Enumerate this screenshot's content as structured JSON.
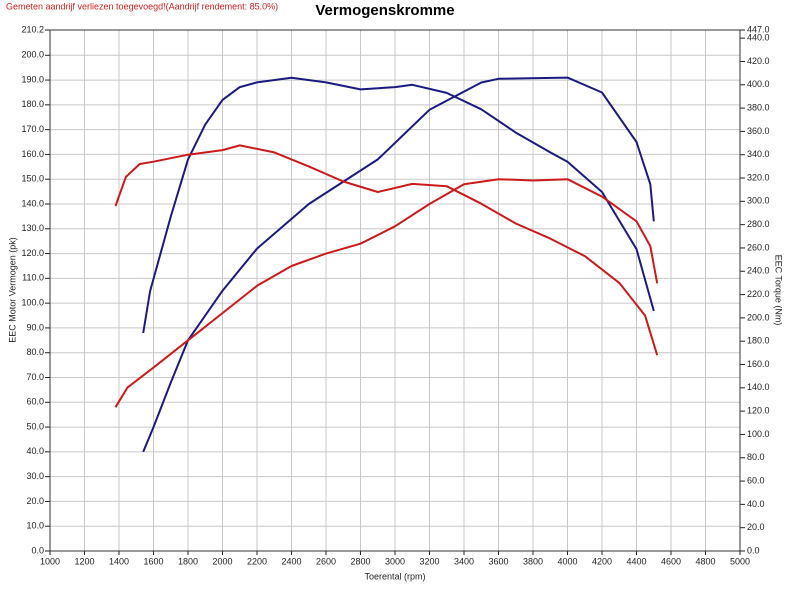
{
  "chart_data": {
    "type": "line",
    "title": "Vermogenskromme",
    "subtitle": "Gemeten aandrijf verliezen toegevoegd!(Aandrijf rendement: 85.0%)",
    "xlabel": "Toerental (rpm)",
    "ylabel": "EEC Motor Vermogen (pk)",
    "y2label": "EEC Torque (Nm)",
    "xlim": [
      1000,
      5000
    ],
    "xticks": [
      1000,
      1200,
      1400,
      1600,
      1800,
      2000,
      2200,
      2400,
      2600,
      2800,
      3000,
      3200,
      3400,
      3600,
      3800,
      4000,
      4200,
      4400,
      4600,
      4800,
      5000
    ],
    "ylim": [
      0,
      210.2
    ],
    "yticks": [
      {
        "value": 0,
        "label": "0.0"
      },
      {
        "value": 10,
        "label": "10.0"
      },
      {
        "value": 20,
        "label": "20.0"
      },
      {
        "value": 30,
        "label": "30.0"
      },
      {
        "value": 40,
        "label": "40.0"
      },
      {
        "value": 50,
        "label": "50.0"
      },
      {
        "value": 60,
        "label": "60.0"
      },
      {
        "value": 70,
        "label": "70.0"
      },
      {
        "value": 80,
        "label": "80.0"
      },
      {
        "value": 90,
        "label": "90.0"
      },
      {
        "value": 100,
        "label": "100.0"
      },
      {
        "value": 110,
        "label": "110.0"
      },
      {
        "value": 120,
        "label": "120.0"
      },
      {
        "value": 130,
        "label": "130.0"
      },
      {
        "value": 140,
        "label": "140.0"
      },
      {
        "value": 150,
        "label": "150.0"
      },
      {
        "value": 160,
        "label": "160.0"
      },
      {
        "value": 170,
        "label": "170.0"
      },
      {
        "value": 180,
        "label": "180.0"
      },
      {
        "value": 190,
        "label": "190.0"
      },
      {
        "value": 200,
        "label": "200.0"
      },
      {
        "value": 210.2,
        "label": "210.2"
      }
    ],
    "y2lim": [
      0,
      447
    ],
    "y2ticks": [
      {
        "value": 0,
        "label": "0.0"
      },
      {
        "value": 20,
        "label": "20.0"
      },
      {
        "value": 40,
        "label": "40.0"
      },
      {
        "value": 60,
        "label": "60.0"
      },
      {
        "value": 80,
        "label": "80.0"
      },
      {
        "value": 100,
        "label": "100.0"
      },
      {
        "value": 120,
        "label": "120.0"
      },
      {
        "value": 140,
        "label": "140.0"
      },
      {
        "value": 160,
        "label": "160.0"
      },
      {
        "value": 180,
        "label": "180.0"
      },
      {
        "value": 200,
        "label": "200.0"
      },
      {
        "value": 220,
        "label": "220.0"
      },
      {
        "value": 240,
        "label": "240.0"
      },
      {
        "value": 260,
        "label": "260.0"
      },
      {
        "value": 280,
        "label": "280.0"
      },
      {
        "value": 300,
        "label": "300.0"
      },
      {
        "value": 320,
        "label": "320.0"
      },
      {
        "value": 340,
        "label": "340.0"
      },
      {
        "value": 360,
        "label": "360.0"
      },
      {
        "value": 380,
        "label": "380.0"
      },
      {
        "value": 400,
        "label": "400.0"
      },
      {
        "value": 420,
        "label": "420.0"
      },
      {
        "value": 440,
        "label": "440.0"
      },
      {
        "value": 447,
        "label": "447.0"
      }
    ],
    "grid": true,
    "series": [
      {
        "color": "#1a1a80",
        "axis": "y",
        "x": [
          1540,
          1600,
          1700,
          1800,
          2000,
          2200,
          2500,
          2900,
          3200,
          3500,
          3600,
          4000,
          4200,
          4400,
          4480,
          4500
        ],
        "values": [
          40,
          50,
          68,
          85,
          105,
          122,
          140,
          158,
          178,
          189,
          190.5,
          191,
          185,
          165,
          148,
          133
        ]
      },
      {
        "color": "#1a1a80",
        "axis": "y2",
        "x": [
          1540,
          1580,
          1700,
          1800,
          1900,
          2000,
          2100,
          2200,
          2400,
          2600,
          2800,
          3000,
          3100,
          3300,
          3500,
          3700,
          3900,
          4000,
          4200,
          4400,
          4500
        ],
        "values": [
          187,
          223,
          287,
          336,
          366,
          387,
          398,
          402,
          406,
          402,
          396,
          398,
          400,
          393,
          379,
          359,
          342,
          334,
          308,
          259,
          206
        ]
      },
      {
        "color": "#cc1a1a",
        "axis": "y",
        "x": [
          1380,
          1450,
          1600,
          1800,
          2000,
          2200,
          2400,
          2600,
          2800,
          3000,
          3200,
          3400,
          3600,
          3800,
          4000,
          4200,
          4400,
          4480,
          4520
        ],
        "values": [
          58,
          66,
          74,
          85,
          96,
          107,
          115,
          120,
          124,
          131,
          140,
          148,
          150,
          149.5,
          150,
          143,
          133,
          123,
          108
        ]
      },
      {
        "color": "#cc1a1a",
        "axis": "y2",
        "x": [
          1380,
          1440,
          1520,
          1600,
          1800,
          2000,
          2100,
          2300,
          2500,
          2700,
          2900,
          3100,
          3300,
          3500,
          3700,
          3900,
          4100,
          4300,
          4450,
          4520
        ],
        "values": [
          296,
          321,
          332,
          334,
          340,
          344,
          348,
          342,
          330,
          317,
          308,
          315,
          313,
          298,
          281,
          268,
          253,
          230,
          202,
          168
        ]
      }
    ]
  }
}
